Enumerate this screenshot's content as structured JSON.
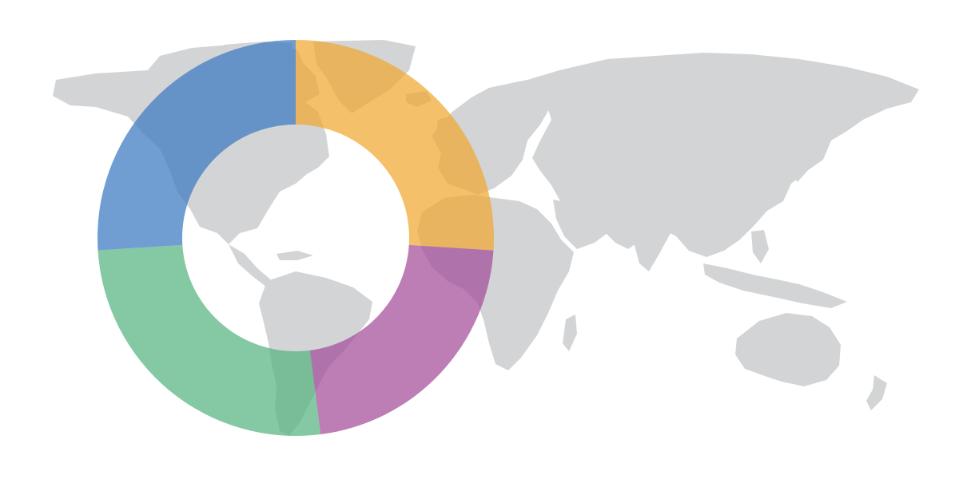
{
  "background_map": {
    "land_color": "#d3d4d6",
    "background_color": "#ffffff"
  },
  "chart_data": {
    "type": "pie",
    "title": "",
    "style": "donut",
    "start_angle_deg": 0,
    "direction": "clockwise",
    "slices": [
      {
        "value": 26,
        "color": "#f0a830",
        "opacity": 0.72
      },
      {
        "value": 22,
        "color": "#a24c98",
        "opacity": 0.72
      },
      {
        "value": 26,
        "color": "#55b47f",
        "opacity": 0.72
      },
      {
        "value": 26,
        "color": "#3a78c0",
        "opacity": 0.72
      }
    ]
  }
}
